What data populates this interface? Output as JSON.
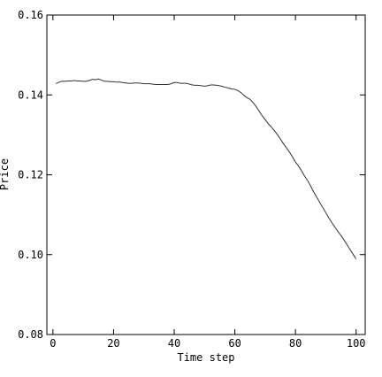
{
  "chart_data": {
    "type": "line",
    "title": "",
    "xlabel": "Time step",
    "ylabel": "Price",
    "xlim": [
      -2,
      103
    ],
    "ylim": [
      0.08,
      0.16
    ],
    "x_ticks": [
      0,
      20,
      40,
      60,
      80,
      100
    ],
    "y_ticks": [
      0.08,
      0.1,
      0.12,
      0.14,
      0.16
    ],
    "x_tick_labels": [
      "0",
      "20",
      "40",
      "60",
      "80",
      "100"
    ],
    "y_tick_labels": [
      "0.08",
      "0.10",
      "0.12",
      "0.14",
      "0.16"
    ],
    "grid": false,
    "legend": "none",
    "line_color": "#333333",
    "series": [
      {
        "x": [
          1,
          2,
          3,
          4,
          5,
          6,
          7,
          8,
          9,
          10,
          11,
          12,
          13,
          14,
          15,
          16,
          17,
          18,
          19,
          20,
          21,
          22,
          23,
          24,
          25,
          26,
          27,
          28,
          29,
          30,
          31,
          32,
          33,
          34,
          35,
          36,
          37,
          38,
          39,
          40,
          41,
          42,
          43,
          44,
          45,
          46,
          47,
          48,
          49,
          50,
          51,
          52,
          53,
          54,
          55,
          56,
          57,
          58,
          59,
          60,
          61,
          62,
          63,
          64,
          65,
          66,
          67,
          68,
          69,
          70,
          71,
          72,
          73,
          74,
          75,
          76,
          77,
          78,
          79,
          80,
          81,
          82,
          83,
          84,
          85,
          86,
          87,
          88,
          89,
          90,
          91,
          92,
          93,
          94,
          95,
          96,
          97,
          98,
          99,
          100
        ],
        "values": [
          0.1428,
          0.1432,
          0.1434,
          0.1434,
          0.1435,
          0.1435,
          0.1436,
          0.1435,
          0.1435,
          0.1434,
          0.1434,
          0.1436,
          0.1439,
          0.1438,
          0.144,
          0.1437,
          0.1434,
          0.1434,
          0.1433,
          0.1433,
          0.1432,
          0.1432,
          0.1431,
          0.143,
          0.1429,
          0.1429,
          0.143,
          0.143,
          0.1429,
          0.1428,
          0.1428,
          0.1428,
          0.1427,
          0.1426,
          0.1426,
          0.1426,
          0.1426,
          0.1426,
          0.1428,
          0.1431,
          0.1431,
          0.1429,
          0.1429,
          0.1429,
          0.1427,
          0.1425,
          0.1424,
          0.1424,
          0.1423,
          0.1422,
          0.1423,
          0.1425,
          0.1425,
          0.1424,
          0.1423,
          0.1421,
          0.1419,
          0.1417,
          0.1415,
          0.1414,
          0.1411,
          0.1406,
          0.1399,
          0.1393,
          0.1389,
          0.1381,
          0.1371,
          0.136,
          0.1348,
          0.1338,
          0.1328,
          0.132,
          0.1311,
          0.1301,
          0.129,
          0.1278,
          0.1268,
          0.1257,
          0.1245,
          0.1232,
          0.1222,
          0.121,
          0.1197,
          0.1185,
          0.1172,
          0.1157,
          0.1144,
          0.1131,
          0.1118,
          0.1105,
          0.1092,
          0.108,
          0.1069,
          0.1058,
          0.1048,
          0.1037,
          0.1025,
          0.1013,
          0.1001,
          0.0989
        ]
      }
    ]
  }
}
